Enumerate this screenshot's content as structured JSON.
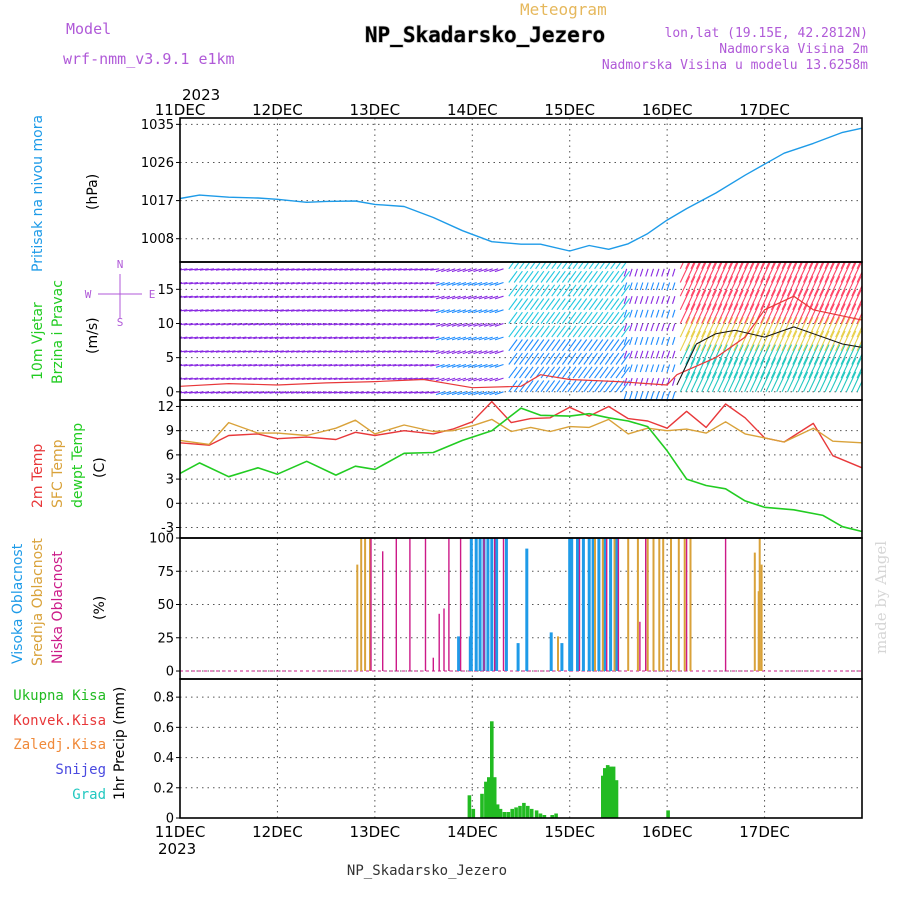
{
  "header": {
    "meteogram": "Meteogram",
    "station": "NP_Skadarsko_Jezero",
    "model_label": "Model",
    "model_value": "wrf-nmm_v3.9.1 e1km",
    "lonlat": "lon,lat (19.15E, 42.2812N)",
    "altitude": "Nadmorska Visina 2m",
    "model_altitude": "Nadmorska Visina u modelu 13.6258m",
    "year": "2023",
    "credit": "made by Angel",
    "footer": "NP_Skadarsko_Jezero"
  },
  "colors": {
    "pressure": "#1e9be8",
    "temp2m": "#e8383a",
    "sfc": "#d9a23a",
    "dewpt": "#22cc22",
    "wind_low": "#8a2be2",
    "wind_mid": "#1e8cff",
    "wind_high": "#ff4466",
    "high_cloud": "#1e9be8",
    "mid_cloud": "#d9a23a",
    "low_cloud": "#cc1a88",
    "total_precip": "#22bb22"
  },
  "chart_data": [
    {
      "type": "line",
      "panel": "pressure",
      "ylabel": [
        "Pritisak na nivou mora",
        "(hPa)"
      ],
      "yticks": [
        1008,
        1017,
        1026,
        1035
      ],
      "ylim": [
        1002.5,
        1036.5
      ],
      "x_days": [
        "11DEC",
        "12DEC",
        "13DEC",
        "14DEC",
        "15DEC",
        "16DEC",
        "17DEC"
      ],
      "series": [
        {
          "key": "pressure",
          "x": [
            0,
            0.2,
            0.5,
            0.8,
            1.0,
            1.3,
            1.5,
            1.8,
            2.0,
            2.3,
            2.6,
            2.9,
            3.2,
            3.5,
            3.7,
            4.0,
            4.2,
            4.4,
            4.6,
            4.8,
            5.0,
            5.2,
            5.5,
            5.8,
            6.0,
            6.2,
            6.5,
            6.8,
            7.0
          ],
          "values": [
            1017.5,
            1018.3,
            1017.8,
            1017.6,
            1017.3,
            1016.6,
            1016.8,
            1016.9,
            1016.1,
            1015.6,
            1013.0,
            1009.9,
            1007.3,
            1006.7,
            1006.7,
            1005.1,
            1006.4,
            1005.5,
            1006.8,
            1009.2,
            1012.4,
            1015.1,
            1018.8,
            1023.0,
            1025.6,
            1028.2,
            1030.5,
            1033.1,
            1034.1
          ]
        }
      ]
    },
    {
      "type": "line",
      "panel": "wind",
      "ylabel": [
        "10m Vjetar",
        "Brzina i Pravac",
        "(m/s)"
      ],
      "legend_compass": [
        "N",
        "W",
        "E",
        "S"
      ],
      "yticks": [
        0,
        5,
        10,
        15
      ],
      "ylim": [
        -1.2,
        19
      ],
      "series": [
        {
          "key": "wind_gust",
          "x": [
            0,
            0.5,
            1.0,
            1.5,
            2.0,
            2.5,
            3.0,
            3.5,
            3.7,
            4.0,
            4.5,
            5.0,
            5.1,
            5.5,
            5.8,
            6.0,
            6.3,
            6.5,
            7.0
          ],
          "values": [
            0.8,
            1.2,
            1.0,
            1.3,
            1.5,
            1.8,
            0.6,
            0.8,
            2.5,
            1.8,
            1.5,
            1.0,
            2.5,
            5.0,
            8.0,
            12.0,
            14.0,
            12.0,
            10.5
          ]
        },
        {
          "key": "wind_speed",
          "x": [
            5.1,
            5.3,
            5.5,
            5.7,
            6.0,
            6.3,
            6.5,
            6.8,
            7.0
          ],
          "values": [
            1.0,
            7.0,
            8.5,
            9.0,
            8.0,
            9.5,
            8.5,
            7.0,
            6.5
          ]
        }
      ]
    },
    {
      "type": "line",
      "panel": "temperature",
      "ylabel": [
        "2m Temp",
        "SFC Temp",
        "dewpt Temp",
        "(C)"
      ],
      "yticks": [
        -3,
        0,
        3,
        6,
        9,
        12
      ],
      "ylim": [
        -4.3,
        12.8
      ],
      "series": [
        {
          "name": "2m Temp",
          "x": [
            0,
            0.3,
            0.5,
            0.8,
            1.0,
            1.3,
            1.6,
            1.8,
            2.0,
            2.3,
            2.6,
            2.8,
            3.0,
            3.2,
            3.4,
            3.6,
            3.8,
            4.0,
            4.2,
            4.4,
            4.6,
            4.8,
            5.0,
            5.2,
            5.4,
            5.6,
            5.8,
            6.0,
            6.2,
            6.5,
            6.7,
            7.0
          ],
          "values": [
            7.5,
            7.2,
            8.4,
            8.6,
            8.0,
            8.2,
            7.9,
            8.8,
            8.4,
            9.0,
            8.6,
            9.2,
            10.1,
            12.6,
            10.0,
            10.5,
            10.6,
            11.9,
            10.8,
            12.0,
            10.5,
            10.2,
            9.3,
            11.4,
            9.4,
            12.3,
            10.6,
            8.1,
            7.6,
            9.9,
            5.9,
            4.4
          ]
        },
        {
          "name": "SFC Temp",
          "x": [
            0,
            0.3,
            0.5,
            0.8,
            1.0,
            1.3,
            1.6,
            1.8,
            2.0,
            2.3,
            2.6,
            2.8,
            3.0,
            3.2,
            3.4,
            3.6,
            3.8,
            4.0,
            4.2,
            4.4,
            4.6,
            4.8,
            5.0,
            5.2,
            5.4,
            5.6,
            5.8,
            6.0,
            6.2,
            6.5,
            6.7,
            7.0
          ],
          "values": [
            7.8,
            7.3,
            10.0,
            8.7,
            8.7,
            8.4,
            9.3,
            10.3,
            8.6,
            9.7,
            8.9,
            9.0,
            9.6,
            10.4,
            8.9,
            9.4,
            8.9,
            9.5,
            9.4,
            10.4,
            8.6,
            9.3,
            9.0,
            9.2,
            8.7,
            10.1,
            8.6,
            8.1,
            7.6,
            9.3,
            7.7,
            7.5
          ]
        },
        {
          "name": "dewpt Temp",
          "x": [
            0,
            0.2,
            0.5,
            0.8,
            1.0,
            1.3,
            1.6,
            1.8,
            2.0,
            2.3,
            2.6,
            2.9,
            3.2,
            3.5,
            3.7,
            4.0,
            4.2,
            4.4,
            4.6,
            4.8,
            5.0,
            5.2,
            5.4,
            5.6,
            5.8,
            6.0,
            6.3,
            6.6,
            6.8,
            7.0
          ],
          "values": [
            3.7,
            5.0,
            3.3,
            4.4,
            3.6,
            5.2,
            3.5,
            4.6,
            4.2,
            6.2,
            6.3,
            7.8,
            9.0,
            11.8,
            10.9,
            10.8,
            11.1,
            10.6,
            10.2,
            9.5,
            6.5,
            3.0,
            2.2,
            1.8,
            0.3,
            -0.5,
            -0.8,
            -1.5,
            -2.9,
            -3.5
          ]
        }
      ]
    },
    {
      "type": "bar",
      "panel": "cloud",
      "ylabel": [
        "Visoka Oblacnost",
        "Srednja Oblacnost",
        "Niska Oblacnost",
        "(%)"
      ],
      "yticks": [
        0,
        25,
        50,
        75,
        100
      ],
      "ylim": [
        -6,
        100
      ],
      "series": [
        {
          "key": "high_cloud",
          "name": "Visoka Oblacnost",
          "x": [
            2.86,
            2.98,
            2.99,
            3.04,
            3.08,
            3.12,
            3.16,
            3.2,
            3.25,
            3.35,
            3.47,
            3.56,
            3.81,
            3.92,
            4.0,
            4.02,
            4.08,
            4.14,
            4.2,
            4.24,
            4.3,
            4.36,
            4.42,
            4.48
          ],
          "values": [
            26,
            26,
            100,
            100,
            100,
            100,
            100,
            100,
            100,
            100,
            21,
            92,
            29,
            21,
            100,
            100,
            100,
            100,
            100,
            100,
            100,
            100,
            100,
            100
          ]
        },
        {
          "key": "mid_cloud",
          "name": "Srednja Oblacnost",
          "x": [
            1.82,
            1.86,
            1.9,
            1.95,
            3.88,
            4.26,
            4.34,
            4.46,
            4.6,
            4.7,
            4.8,
            4.86,
            4.92,
            4.96,
            5.04,
            5.12,
            5.18,
            5.24,
            5.9,
            5.94,
            5.95,
            5.97
          ],
          "values": [
            80,
            100,
            100,
            100,
            26,
            100,
            100,
            100,
            100,
            100,
            100,
            100,
            100,
            100,
            100,
            100,
            100,
            100,
            89,
            60,
            100,
            80
          ]
        },
        {
          "key": "low_cloud",
          "name": "Niska Oblacnost",
          "x": [
            0.0,
            1.0,
            1.96,
            2.08,
            2.22,
            2.36,
            2.52,
            2.6,
            2.66,
            2.71,
            2.76,
            2.88,
            3.12,
            3.23,
            3.32,
            4.1,
            4.38,
            4.5,
            4.72,
            4.78,
            5.2,
            5.6
          ],
          "values": [
            0,
            0,
            100,
            90,
            100,
            100,
            100,
            10,
            43,
            47,
            100,
            100,
            100,
            100,
            100,
            100,
            100,
            100,
            37,
            100,
            100,
            100
          ]
        }
      ]
    },
    {
      "type": "bar",
      "panel": "precip",
      "ylabel": [
        "1hr Precip (mm)"
      ],
      "legend": [
        "Ukupna Kisa",
        "Konvek.Kisa",
        "Zaledj.Kisa",
        "Snijeg",
        "Grad"
      ],
      "yticks": [
        0,
        0.2,
        0.4,
        0.6,
        0.8
      ],
      "ylim": [
        0,
        0.92
      ],
      "series": [
        {
          "name": "Ukupna Kisa",
          "x": [
            2.97,
            3.01,
            3.1,
            3.14,
            3.17,
            3.2,
            3.23,
            3.26,
            3.29,
            3.33,
            3.37,
            3.41,
            3.45,
            3.49,
            3.53,
            3.57,
            3.61,
            3.66,
            3.7,
            3.74,
            3.82,
            3.86,
            4.34,
            4.36,
            4.39,
            4.42,
            4.45,
            4.48,
            5.01
          ],
          "values": [
            0.15,
            0.06,
            0.16,
            0.24,
            0.27,
            0.64,
            0.27,
            0.09,
            0.06,
            0.04,
            0.04,
            0.06,
            0.07,
            0.08,
            0.1,
            0.08,
            0.06,
            0.05,
            0.03,
            0.02,
            0.02,
            0.03,
            0.28,
            0.33,
            0.35,
            0.34,
            0.34,
            0.25,
            0.05
          ]
        }
      ]
    }
  ]
}
